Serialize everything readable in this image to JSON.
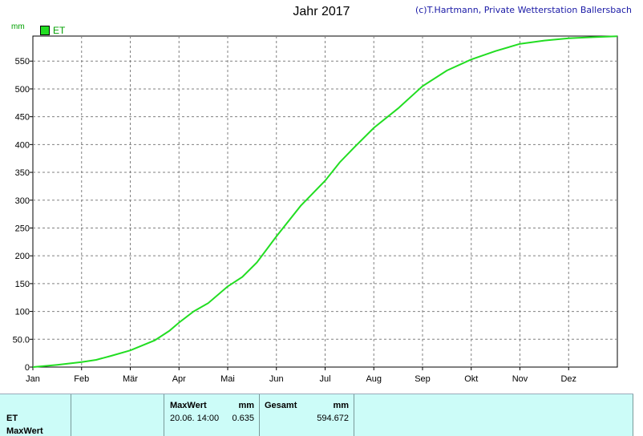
{
  "header": {
    "title": "Jahr 2017",
    "copyright": "(c)T.Hartmann, Private Wetterstation Ballersbach",
    "unit": "mm",
    "legend": "ET",
    "line_color": "#22dd22"
  },
  "chart_data": {
    "type": "line",
    "title": "Jahr 2017",
    "ylabel": "mm",
    "ylim": [
      0,
      595
    ],
    "yticks": [
      0,
      50,
      100,
      150,
      200,
      250,
      300,
      350,
      400,
      450,
      500,
      550
    ],
    "ytick_labels": [
      "0",
      "50.0",
      "100",
      "150",
      "200",
      "250",
      "300",
      "350",
      "400",
      "450",
      "500",
      "550"
    ],
    "month_labels": [
      "Jan",
      "Feb",
      "Mär",
      "Apr",
      "Mai",
      "Jun",
      "Jul",
      "Aug",
      "Sep",
      "Okt",
      "Nov",
      "Dez"
    ],
    "xlim": [
      0,
      12
    ],
    "grid": true,
    "series": [
      {
        "name": "ET",
        "x": [
          0,
          0.5,
          1,
          1.3,
          1.6,
          2,
          2.5,
          2.8,
          3,
          3.3,
          3.6,
          4,
          4.3,
          4.6,
          5,
          5.5,
          6,
          6.3,
          6.6,
          7,
          7.5,
          8,
          8.5,
          9,
          9.5,
          10,
          10.5,
          11,
          11.5,
          12
        ],
        "values": [
          0,
          4,
          9,
          13,
          20,
          30,
          48,
          65,
          80,
          100,
          115,
          145,
          162,
          188,
          235,
          290,
          335,
          368,
          395,
          430,
          465,
          505,
          533,
          553,
          568,
          581,
          587,
          591,
          593,
          594.7
        ]
      }
    ]
  },
  "table": {
    "row1_label": "ET",
    "row2_label": "MaxWert",
    "max_header": "MaxWert",
    "max_unit": "mm",
    "max_date": "20.06. 14:00",
    "max_value": "0.635",
    "sum_header": "Gesamt",
    "sum_unit": "mm",
    "sum_value": "594.672"
  }
}
